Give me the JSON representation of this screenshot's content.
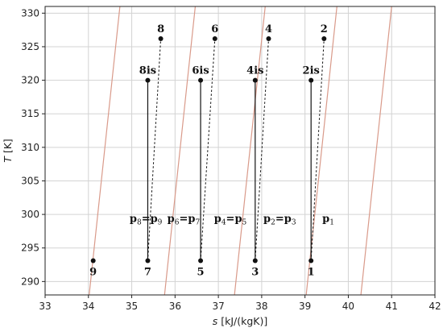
{
  "chart_data": {
    "type": "line",
    "xlabel_var": "s",
    "xlabel_unit": "[kJ/(kgK)]",
    "ylabel_var": "T",
    "ylabel_unit": "[K]",
    "xlim": [
      33,
      42
    ],
    "ylim": [
      288,
      331
    ],
    "xticks": [
      33,
      34,
      35,
      36,
      37,
      38,
      39,
      40,
      41,
      42
    ],
    "yticks": [
      290,
      295,
      300,
      305,
      310,
      315,
      320,
      325,
      330
    ],
    "grid": true,
    "isobar_color": "#d99a8a",
    "isobar_slope": 60.6,
    "isobars": [
      {
        "name": "p1",
        "through": [
          41.0,
          331.0
        ]
      },
      {
        "name": "p2=p3",
        "through": [
          39.11,
          293.0
        ]
      },
      {
        "name": "p4=p5",
        "through": [
          37.9,
          320.0
        ]
      },
      {
        "name": "p6=p7",
        "through": [
          36.0,
          302.7
        ]
      },
      {
        "name": "p8=p9",
        "through": [
          34.1,
          293.0
        ]
      }
    ],
    "points": [
      {
        "label": "1",
        "s": 39.14,
        "T": 293.1,
        "label_pos": "below"
      },
      {
        "label": "2is",
        "s": 39.14,
        "T": 320.0,
        "label_pos": "above"
      },
      {
        "label": "2",
        "s": 39.44,
        "T": 326.2,
        "label_pos": "above"
      },
      {
        "label": "3",
        "s": 37.85,
        "T": 293.1,
        "label_pos": "below"
      },
      {
        "label": "4is",
        "s": 37.85,
        "T": 320.0,
        "label_pos": "above"
      },
      {
        "label": "4",
        "s": 38.16,
        "T": 326.2,
        "label_pos": "above"
      },
      {
        "label": "5",
        "s": 36.59,
        "T": 293.1,
        "label_pos": "below"
      },
      {
        "label": "6is",
        "s": 36.59,
        "T": 320.0,
        "label_pos": "above"
      },
      {
        "label": "6",
        "s": 36.92,
        "T": 326.2,
        "label_pos": "above"
      },
      {
        "label": "7",
        "s": 35.37,
        "T": 293.1,
        "label_pos": "below"
      },
      {
        "label": "8is",
        "s": 35.37,
        "T": 320.0,
        "label_pos": "above"
      },
      {
        "label": "8",
        "s": 35.67,
        "T": 326.2,
        "label_pos": "above"
      },
      {
        "label": "9",
        "s": 34.11,
        "T": 293.1,
        "label_pos": "below"
      }
    ],
    "solid_segments": [
      [
        "1",
        "2is"
      ],
      [
        "3",
        "4is"
      ],
      [
        "5",
        "6is"
      ],
      [
        "7",
        "8is"
      ]
    ],
    "dashed_segments": [
      [
        "1",
        "2"
      ],
      [
        "3",
        "4"
      ],
      [
        "5",
        "6"
      ],
      [
        "7",
        "8"
      ]
    ],
    "pressure_labels": [
      {
        "main": "p",
        "sub": "8",
        "mid": "=p",
        "sub2": "9",
        "s": 34.95,
        "T": 298.9
      },
      {
        "main": "p",
        "sub": "6",
        "mid": "=p",
        "sub2": "7",
        "s": 35.82,
        "T": 298.9
      },
      {
        "main": "p",
        "sub": "4",
        "mid": "=p",
        "sub2": "5",
        "s": 36.9,
        "T": 298.9
      },
      {
        "main": "p",
        "sub": "2",
        "mid": "=p",
        "sub2": "3",
        "s": 38.04,
        "T": 298.9
      },
      {
        "main": "p",
        "sub": "1",
        "mid": "",
        "sub2": "",
        "s": 39.4,
        "T": 298.9
      }
    ]
  }
}
